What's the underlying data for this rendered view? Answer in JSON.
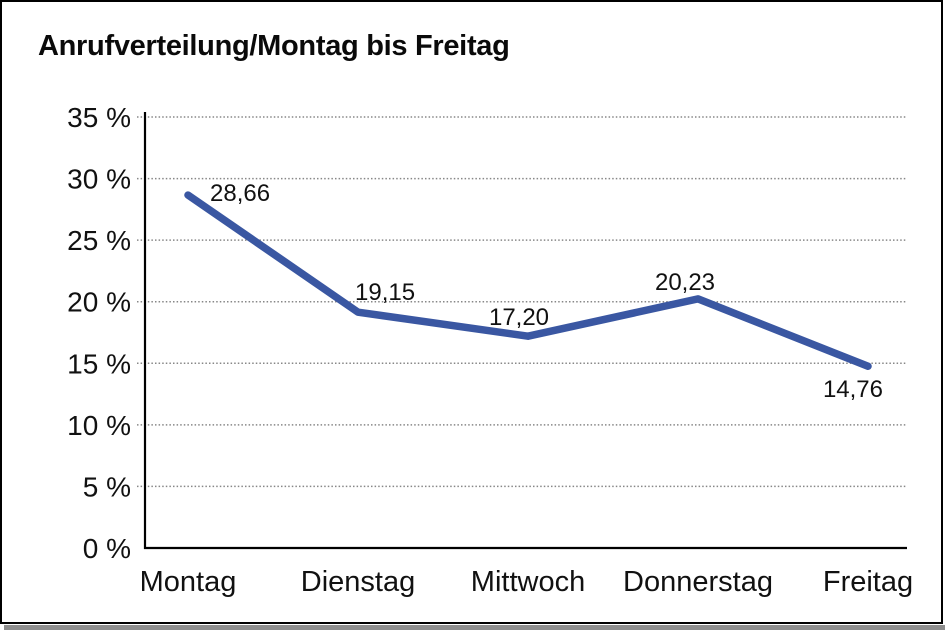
{
  "window": {
    "background": "#ffffff",
    "frame_border_color": "#000000",
    "frame_shadow_color": "#8d8d8d"
  },
  "chart_data": {
    "type": "line",
    "title": "Anrufverteilung/Montag bis Freitag",
    "categories": [
      "Montag",
      "Dienstag",
      "Mittwoch",
      "Donnerstag",
      "Freitag"
    ],
    "series": [
      {
        "name": "Anrufverteilung",
        "values": [
          28.66,
          19.15,
          17.2,
          20.23,
          14.76
        ]
      }
    ],
    "data_labels": [
      "28,66",
      "19,15",
      "17,20",
      "20,23",
      "14,76"
    ],
    "y_ticks": [
      0,
      5,
      10,
      15,
      20,
      25,
      30,
      35
    ],
    "y_tick_labels": [
      "0 %",
      "5 %",
      "10 %",
      "15 %",
      "20 %",
      "25 %",
      "30 %",
      "35 %"
    ],
    "ylim": [
      0,
      35
    ],
    "xlabel": "",
    "ylabel": "",
    "grid": "horizontal-dotted",
    "legend": "none",
    "line_color": "#3A57A2",
    "grid_color": "#878787",
    "axis_color": "#000000",
    "text_color": "#111111"
  }
}
